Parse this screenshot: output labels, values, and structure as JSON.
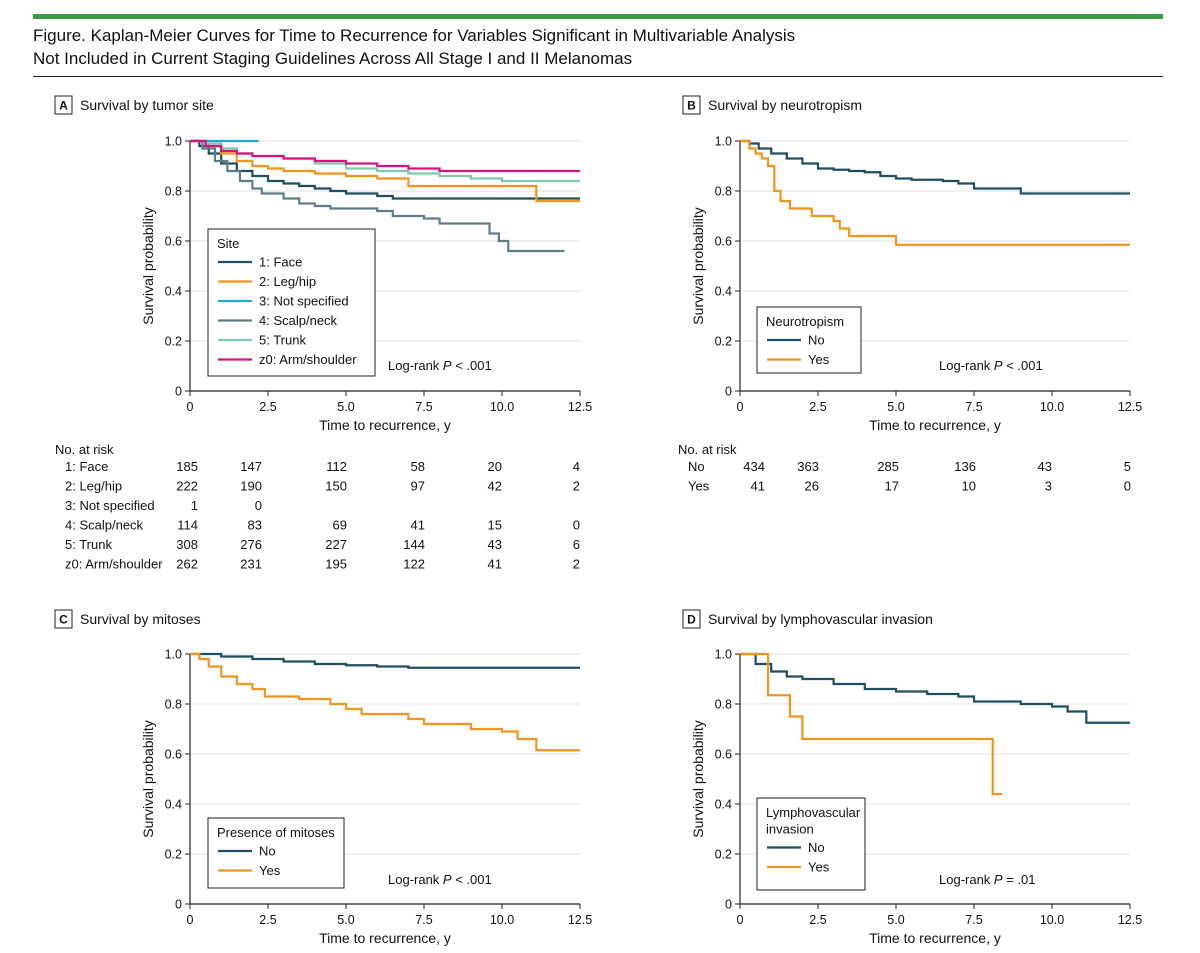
{
  "figure": {
    "title_line1": "Figure. Kaplan-Meier Curves for Time to Recurrence for Variables Significant in Multivariable Analysis",
    "title_line2": "Not Included in Current Staging Guidelines Across All Stage I and II Melanomas",
    "accent_color": "#3b9b45"
  },
  "chart_data": [
    {
      "panel": "A",
      "type": "line",
      "title": "Survival by tumor site",
      "xlabel": "Time to recurrence, y",
      "ylabel": "Survival probability",
      "xlim": [
        0,
        12.5
      ],
      "ylim": [
        0,
        1.0
      ],
      "x_ticks": [
        "0",
        "2.5",
        "5.0",
        "7.5",
        "10.0",
        "12.5"
      ],
      "y_ticks": [
        "0",
        "0.2",
        "0.4",
        "0.6",
        "0.8",
        "1.0"
      ],
      "legend_title": "Site",
      "legend_position": "bottom-left",
      "annotation_prefix": "Log-rank ",
      "annotation_p": "P",
      "annotation_rest": " < .001",
      "series": [
        {
          "name": "1: Face",
          "color": "#1f4e5f",
          "points": [
            [
              0,
              1.0
            ],
            [
              0.3,
              0.98
            ],
            [
              0.6,
              0.95
            ],
            [
              1.0,
              0.91
            ],
            [
              1.5,
              0.88
            ],
            [
              2.0,
              0.86
            ],
            [
              2.5,
              0.84
            ],
            [
              3.0,
              0.83
            ],
            [
              3.5,
              0.82
            ],
            [
              4.0,
              0.81
            ],
            [
              4.5,
              0.8
            ],
            [
              5.0,
              0.79
            ],
            [
              6.0,
              0.78
            ],
            [
              6.5,
              0.77
            ],
            [
              8.0,
              0.77
            ],
            [
              10.0,
              0.77
            ],
            [
              12.5,
              0.77
            ]
          ]
        },
        {
          "name": "2: Leg/hip",
          "color": "#f0951f",
          "points": [
            [
              0,
              1.0
            ],
            [
              0.5,
              0.98
            ],
            [
              1.0,
              0.95
            ],
            [
              1.5,
              0.92
            ],
            [
              2.0,
              0.9
            ],
            [
              2.5,
              0.89
            ],
            [
              3.0,
              0.88
            ],
            [
              4.0,
              0.87
            ],
            [
              5.0,
              0.86
            ],
            [
              6.0,
              0.85
            ],
            [
              7.0,
              0.82
            ],
            [
              8.0,
              0.82
            ],
            [
              10.0,
              0.82
            ],
            [
              11.0,
              0.82
            ],
            [
              11.1,
              0.76
            ],
            [
              12.5,
              0.76
            ]
          ]
        },
        {
          "name": "3: Not specified",
          "color": "#1ea6d4",
          "points": [
            [
              0,
              1.0
            ],
            [
              2.2,
              1.0
            ]
          ]
        },
        {
          "name": "4: Scalp/neck",
          "color": "#5e7d8b",
          "points": [
            [
              0,
              1.0
            ],
            [
              0.4,
              0.97
            ],
            [
              0.8,
              0.92
            ],
            [
              1.2,
              0.88
            ],
            [
              1.6,
              0.84
            ],
            [
              2.0,
              0.81
            ],
            [
              2.3,
              0.79
            ],
            [
              3.0,
              0.77
            ],
            [
              3.5,
              0.75
            ],
            [
              4.0,
              0.74
            ],
            [
              4.5,
              0.73
            ],
            [
              6.0,
              0.72
            ],
            [
              6.5,
              0.7
            ],
            [
              7.5,
              0.69
            ],
            [
              8.0,
              0.67
            ],
            [
              9.5,
              0.67
            ],
            [
              9.6,
              0.63
            ],
            [
              9.9,
              0.6
            ],
            [
              10.2,
              0.56
            ],
            [
              12.0,
              0.56
            ]
          ]
        },
        {
          "name": "5: Trunk",
          "color": "#7ccaa9",
          "points": [
            [
              0,
              1.0
            ],
            [
              0.5,
              0.99
            ],
            [
              1.0,
              0.97
            ],
            [
              1.5,
              0.95
            ],
            [
              2.0,
              0.94
            ],
            [
              3.0,
              0.93
            ],
            [
              4.0,
              0.91
            ],
            [
              5.0,
              0.89
            ],
            [
              6.0,
              0.88
            ],
            [
              7.0,
              0.87
            ],
            [
              8.0,
              0.86
            ],
            [
              9.0,
              0.85
            ],
            [
              10.0,
              0.84
            ],
            [
              12.5,
              0.84
            ]
          ]
        },
        {
          "name": "z0: Arm/shoulder",
          "color": "#d6127f",
          "points": [
            [
              0,
              1.0
            ],
            [
              0.5,
              0.98
            ],
            [
              1.0,
              0.96
            ],
            [
              1.5,
              0.95
            ],
            [
              2.0,
              0.94
            ],
            [
              3.0,
              0.93
            ],
            [
              4.0,
              0.92
            ],
            [
              5.0,
              0.91
            ],
            [
              6.0,
              0.9
            ],
            [
              7.0,
              0.89
            ],
            [
              8.0,
              0.88
            ],
            [
              12.5,
              0.88
            ]
          ]
        }
      ],
      "risk_table": {
        "header": "No. at risk",
        "rows": [
          {
            "label": "1: Face",
            "values": [
              "185",
              "147",
              "112",
              "58",
              "20",
              "4"
            ]
          },
          {
            "label": "2: Leg/hip",
            "values": [
              "222",
              "190",
              "150",
              "97",
              "42",
              "2"
            ]
          },
          {
            "label": "3: Not specified",
            "values": [
              "1",
              "0",
              "",
              "",
              "",
              ""
            ]
          },
          {
            "label": "4: Scalp/neck",
            "values": [
              "114",
              "83",
              "69",
              "41",
              "15",
              "0"
            ]
          },
          {
            "label": "5: Trunk",
            "values": [
              "308",
              "276",
              "227",
              "144",
              "43",
              "6"
            ]
          },
          {
            "label": "z0: Arm/shoulder",
            "values": [
              "262",
              "231",
              "195",
              "122",
              "41",
              "2"
            ]
          }
        ]
      }
    },
    {
      "panel": "B",
      "type": "line",
      "title": "Survival by neurotropism",
      "xlabel": "Time to recurrence, y",
      "ylabel": "Survival probability",
      "xlim": [
        0,
        12.5
      ],
      "ylim": [
        0,
        1.0
      ],
      "x_ticks": [
        "0",
        "2.5",
        "5.0",
        "7.5",
        "10.0",
        "12.5"
      ],
      "y_ticks": [
        "0",
        "0.2",
        "0.4",
        "0.6",
        "0.8",
        "1.0"
      ],
      "legend_title": "Neurotropism",
      "legend_position": "bottom-left",
      "annotation_prefix": "Log-rank ",
      "annotation_p": "P",
      "annotation_rest": " < .001",
      "series": [
        {
          "name": "No",
          "color": "#1f4e5f",
          "points": [
            [
              0,
              1.0
            ],
            [
              0.3,
              0.99
            ],
            [
              0.6,
              0.97
            ],
            [
              1.0,
              0.95
            ],
            [
              1.5,
              0.93
            ],
            [
              2.0,
              0.91
            ],
            [
              2.5,
              0.89
            ],
            [
              3.0,
              0.885
            ],
            [
              3.5,
              0.88
            ],
            [
              4.0,
              0.875
            ],
            [
              4.5,
              0.86
            ],
            [
              5.0,
              0.85
            ],
            [
              5.5,
              0.845
            ],
            [
              6.5,
              0.84
            ],
            [
              7.0,
              0.83
            ],
            [
              7.5,
              0.81
            ],
            [
              8.0,
              0.81
            ],
            [
              8.8,
              0.81
            ],
            [
              9.0,
              0.79
            ],
            [
              10.0,
              0.79
            ],
            [
              12.5,
              0.79
            ]
          ]
        },
        {
          "name": "Yes",
          "color": "#f0951f",
          "points": [
            [
              0,
              1.0
            ],
            [
              0.3,
              0.97
            ],
            [
              0.5,
              0.95
            ],
            [
              0.7,
              0.93
            ],
            [
              0.9,
              0.9
            ],
            [
              1.1,
              0.8
            ],
            [
              1.3,
              0.76
            ],
            [
              1.6,
              0.73
            ],
            [
              2.3,
              0.7
            ],
            [
              3.0,
              0.68
            ],
            [
              3.2,
              0.65
            ],
            [
              3.5,
              0.62
            ],
            [
              4.9,
              0.62
            ],
            [
              5.0,
              0.585
            ],
            [
              12.5,
              0.585
            ]
          ]
        }
      ],
      "risk_table": {
        "header": "No. at risk",
        "rows": [
          {
            "label": "No",
            "values": [
              "434",
              "363",
              "285",
              "136",
              "43",
              "5"
            ]
          },
          {
            "label": "Yes",
            "values": [
              "41",
              "26",
              "17",
              "10",
              "3",
              "0"
            ]
          }
        ]
      }
    },
    {
      "panel": "C",
      "type": "line",
      "title": "Survival by mitoses",
      "xlabel": "Time to recurrence, y",
      "ylabel": "Survival probability",
      "xlim": [
        0,
        12.5
      ],
      "ylim": [
        0,
        1.0
      ],
      "x_ticks": [
        "0",
        "2.5",
        "5.0",
        "7.5",
        "10.0",
        "12.5"
      ],
      "y_ticks": [
        "0",
        "0.2",
        "0.4",
        "0.6",
        "0.8",
        "1.0"
      ],
      "legend_title": "Presence of mitoses",
      "legend_position": "bottom-left",
      "annotation_prefix": "Log-rank ",
      "annotation_p": "P",
      "annotation_rest": " < .001",
      "series": [
        {
          "name": "No",
          "color": "#1f4e5f",
          "points": [
            [
              0,
              1.0
            ],
            [
              1.0,
              0.99
            ],
            [
              2.0,
              0.98
            ],
            [
              3.0,
              0.97
            ],
            [
              4.0,
              0.96
            ],
            [
              5.0,
              0.955
            ],
            [
              6.0,
              0.95
            ],
            [
              7.0,
              0.945
            ],
            [
              8.0,
              0.945
            ],
            [
              10.0,
              0.945
            ],
            [
              12.5,
              0.945
            ]
          ]
        },
        {
          "name": "Yes",
          "color": "#f0951f",
          "points": [
            [
              0,
              1.0
            ],
            [
              0.3,
              0.98
            ],
            [
              0.6,
              0.95
            ],
            [
              1.0,
              0.91
            ],
            [
              1.5,
              0.88
            ],
            [
              2.0,
              0.86
            ],
            [
              2.4,
              0.83
            ],
            [
              3.0,
              0.83
            ],
            [
              3.5,
              0.82
            ],
            [
              4.5,
              0.8
            ],
            [
              5.0,
              0.78
            ],
            [
              5.5,
              0.76
            ],
            [
              6.0,
              0.76
            ],
            [
              7.0,
              0.74
            ],
            [
              7.5,
              0.72
            ],
            [
              9.0,
              0.7
            ],
            [
              10.0,
              0.69
            ],
            [
              10.5,
              0.66
            ],
            [
              11.0,
              0.66
            ],
            [
              11.1,
              0.615
            ],
            [
              12.5,
              0.615
            ]
          ]
        }
      ],
      "risk_table": null
    },
    {
      "panel": "D",
      "type": "line",
      "title": "Survival by lymphovascular invasion",
      "xlabel": "Time to recurrence, y",
      "ylabel": "Survival probability",
      "xlim": [
        0,
        12.5
      ],
      "ylim": [
        0,
        1.0
      ],
      "x_ticks": [
        "0",
        "2.5",
        "5.0",
        "7.5",
        "10.0",
        "12.5"
      ],
      "y_ticks": [
        "0",
        "0.2",
        "0.4",
        "0.6",
        "0.8",
        "1.0"
      ],
      "legend_title_lines": [
        "Lymphovascular",
        "invasion"
      ],
      "legend_position": "bottom-left",
      "annotation_prefix": "Log-rank ",
      "annotation_p": "P",
      "annotation_rest": " = .01",
      "series": [
        {
          "name": "No",
          "color": "#1f4e5f",
          "points": [
            [
              0,
              1.0
            ],
            [
              0.5,
              0.96
            ],
            [
              1.0,
              0.93
            ],
            [
              1.5,
              0.91
            ],
            [
              2.0,
              0.9
            ],
            [
              3.0,
              0.88
            ],
            [
              4.0,
              0.86
            ],
            [
              5.0,
              0.85
            ],
            [
              6.0,
              0.84
            ],
            [
              7.0,
              0.83
            ],
            [
              7.5,
              0.81
            ],
            [
              8.5,
              0.81
            ],
            [
              9.0,
              0.8
            ],
            [
              10.0,
              0.79
            ],
            [
              10.5,
              0.77
            ],
            [
              11.0,
              0.77
            ],
            [
              11.1,
              0.725
            ],
            [
              12.5,
              0.725
            ]
          ]
        },
        {
          "name": "Yes",
          "color": "#f0951f",
          "points": [
            [
              0,
              1.0
            ],
            [
              0.9,
              1.0
            ],
            [
              0.9,
              0.835
            ],
            [
              1.6,
              0.835
            ],
            [
              1.6,
              0.75
            ],
            [
              2.0,
              0.75
            ],
            [
              2.0,
              0.66
            ],
            [
              8.1,
              0.66
            ],
            [
              8.1,
              0.44
            ],
            [
              8.4,
              0.44
            ]
          ]
        }
      ],
      "risk_table": null
    }
  ]
}
